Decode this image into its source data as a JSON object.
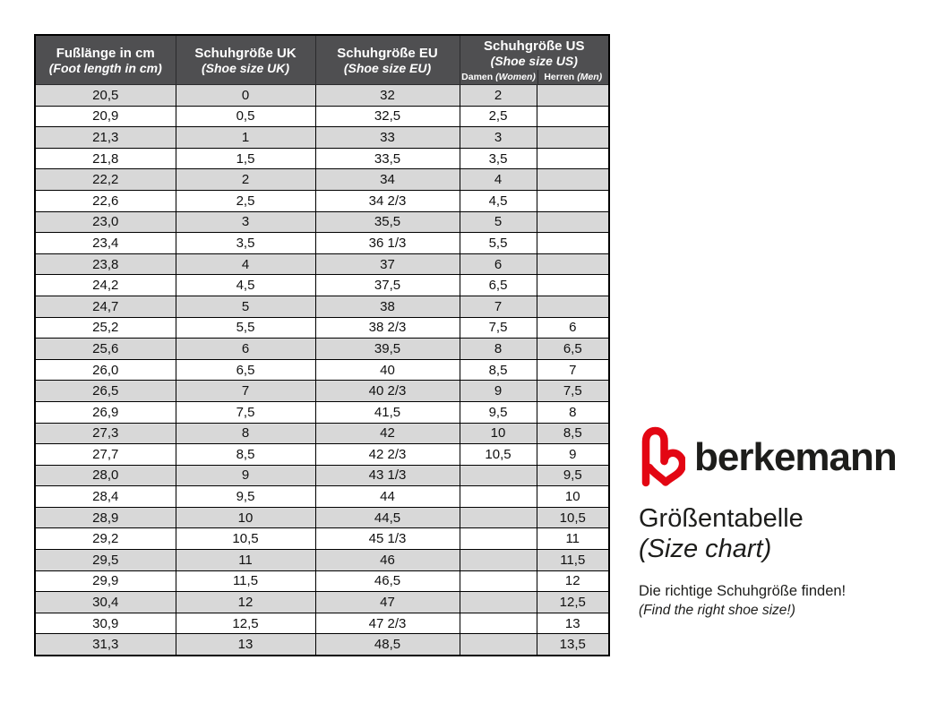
{
  "brand": {
    "logo_color": "#e30613",
    "wordmark": "berkemann",
    "title_de": "Größentabelle",
    "title_en": "(Size chart)",
    "subtitle_de": "Die richtige Schuhgröße finden!",
    "subtitle_en": "(Find the right shoe size!)"
  },
  "table": {
    "colors": {
      "header_bg": "#4f4f51",
      "row_alt_bg": "#d8d8d8",
      "row_bg": "#ffffff",
      "border": "#000000"
    },
    "header": {
      "col_cm_de": "Fußlänge in cm",
      "col_cm_en": "(Foot length in cm)",
      "col_uk_de": "Schuhgröße UK",
      "col_uk_en": "(Shoe size UK)",
      "col_eu_de": "Schuhgröße EU",
      "col_eu_en": "(Shoe size EU)",
      "col_us_de": "Schuhgröße US",
      "col_us_en": "(Shoe size US)",
      "sub_damen_de": "Damen",
      "sub_damen_en": "(Women)",
      "sub_herren_de": "Herren",
      "sub_herren_en": "(Men)"
    },
    "rows": [
      [
        "20,5",
        "0",
        "32",
        "2",
        ""
      ],
      [
        "20,9",
        "0,5",
        "32,5",
        "2,5",
        ""
      ],
      [
        "21,3",
        "1",
        "33",
        "3",
        ""
      ],
      [
        "21,8",
        "1,5",
        "33,5",
        "3,5",
        ""
      ],
      [
        "22,2",
        "2",
        "34",
        "4",
        ""
      ],
      [
        "22,6",
        "2,5",
        "34 2/3",
        "4,5",
        ""
      ],
      [
        "23,0",
        "3",
        "35,5",
        "5",
        ""
      ],
      [
        "23,4",
        "3,5",
        "36 1/3",
        "5,5",
        ""
      ],
      [
        "23,8",
        "4",
        "37",
        "6",
        ""
      ],
      [
        "24,2",
        "4,5",
        "37,5",
        "6,5",
        ""
      ],
      [
        "24,7",
        "5",
        "38",
        "7",
        ""
      ],
      [
        "25,2",
        "5,5",
        "38 2/3",
        "7,5",
        "6"
      ],
      [
        "25,6",
        "6",
        "39,5",
        "8",
        "6,5"
      ],
      [
        "26,0",
        "6,5",
        "40",
        "8,5",
        "7"
      ],
      [
        "26,5",
        "7",
        "40 2/3",
        "9",
        "7,5"
      ],
      [
        "26,9",
        "7,5",
        "41,5",
        "9,5",
        "8"
      ],
      [
        "27,3",
        "8",
        "42",
        "10",
        "8,5"
      ],
      [
        "27,7",
        "8,5",
        "42 2/3",
        "10,5",
        "9"
      ],
      [
        "28,0",
        "9",
        "43 1/3",
        "",
        "9,5"
      ],
      [
        "28,4",
        "9,5",
        "44",
        "",
        "10"
      ],
      [
        "28,9",
        "10",
        "44,5",
        "",
        "10,5"
      ],
      [
        "29,2",
        "10,5",
        "45 1/3",
        "",
        "11"
      ],
      [
        "29,5",
        "11",
        "46",
        "",
        "11,5"
      ],
      [
        "29,9",
        "11,5",
        "46,5",
        "",
        "12"
      ],
      [
        "30,4",
        "12",
        "47",
        "",
        "12,5"
      ],
      [
        "30,9",
        "12,5",
        "47 2/3",
        "",
        "13"
      ],
      [
        "31,3",
        "13",
        "48,5",
        "",
        "13,5"
      ]
    ]
  }
}
